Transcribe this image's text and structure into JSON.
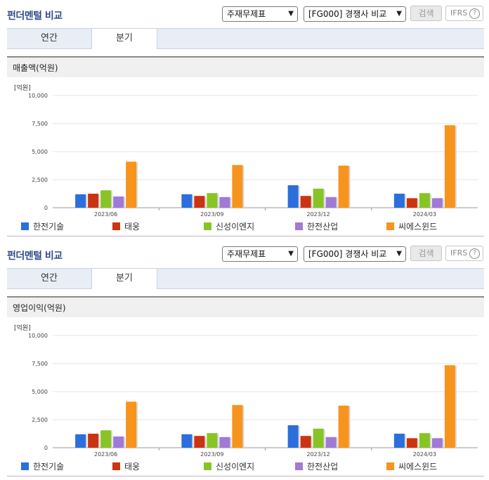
{
  "panels": [
    {
      "title": "펀더멘털 비교",
      "select_statement": "주재무제표",
      "select_group": "[FG000] 경쟁사 비교",
      "search_label": "검색",
      "ifrs_label": "IFRS",
      "help_glyph": "?",
      "tabs": [
        {
          "label": "연간"
        },
        {
          "label": "분기"
        }
      ],
      "active_tab": "분기",
      "section_title": "매출액(억원)"
    },
    {
      "title": "펀더멘털 비교",
      "select_statement": "주재무제표",
      "select_group": "[FG000] 경쟁사 비교",
      "search_label": "검색",
      "ifrs_label": "IFRS",
      "help_glyph": "?",
      "tabs": [
        {
          "label": "연간"
        },
        {
          "label": "분기"
        }
      ],
      "active_tab": "분기",
      "section_title": "영업이익(억원)"
    }
  ],
  "chart_data": [
    {
      "type": "bar",
      "unit_label": "[억원]",
      "categories": [
        "2023/06",
        "2023/09",
        "2023/12",
        "2024/03"
      ],
      "ylim": [
        0,
        10000
      ],
      "yticks": [
        "0",
        "2,500",
        "5,000",
        "7,500",
        "10,000"
      ],
      "grid": true,
      "legend": "bottom",
      "series": [
        {
          "name": "한전기술",
          "color": "#2a6fdb",
          "values": [
            1200,
            1200,
            2000,
            1250
          ]
        },
        {
          "name": "태웅",
          "color": "#cc3311",
          "values": [
            1250,
            1050,
            1050,
            850
          ]
        },
        {
          "name": "신성이엔지",
          "color": "#88c426",
          "values": [
            1550,
            1300,
            1700,
            1300
          ]
        },
        {
          "name": "한전산업",
          "color": "#a07ad6",
          "values": [
            1000,
            950,
            950,
            850
          ]
        },
        {
          "name": "씨에스윈드",
          "color": "#f7941d",
          "values": [
            4100,
            3800,
            3750,
            7350
          ]
        }
      ]
    },
    {
      "type": "bar",
      "unit_label": "[억원]",
      "categories": [
        "2023/06",
        "2023/09",
        "2023/12",
        "2024/03"
      ],
      "ylim": [
        0,
        10000
      ],
      "yticks": [
        "0",
        "2,500",
        "5,000",
        "7,500",
        "10,000"
      ],
      "grid": true,
      "legend": "bottom",
      "series": [
        {
          "name": "한전기술",
          "color": "#2a6fdb",
          "values": [
            1200,
            1200,
            2000,
            1250
          ]
        },
        {
          "name": "태웅",
          "color": "#cc3311",
          "values": [
            1250,
            1050,
            1050,
            850
          ]
        },
        {
          "name": "신성이엔지",
          "color": "#88c426",
          "values": [
            1550,
            1300,
            1700,
            1300
          ]
        },
        {
          "name": "한전산업",
          "color": "#a07ad6",
          "values": [
            1000,
            950,
            950,
            850
          ]
        },
        {
          "name": "씨에스윈드",
          "color": "#f7941d",
          "values": [
            4100,
            3800,
            3750,
            7350
          ]
        }
      ]
    }
  ]
}
